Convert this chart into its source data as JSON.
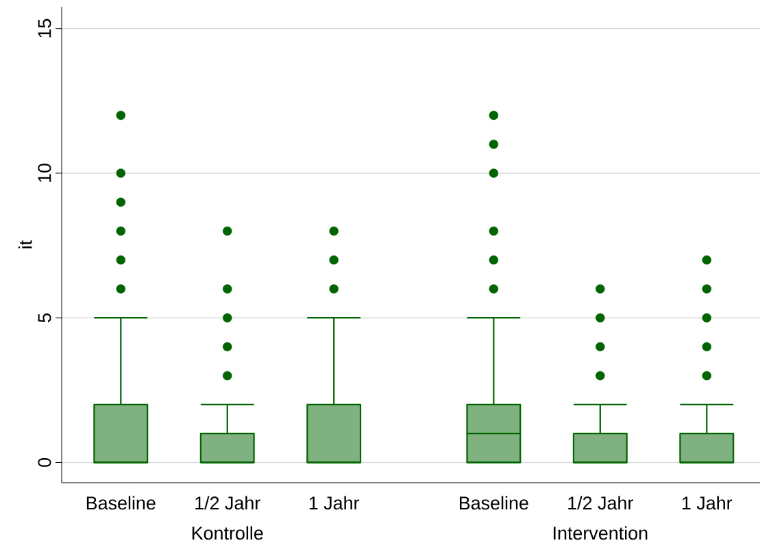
{
  "chart_data": {
    "type": "box",
    "ylabel": "it",
    "categories": [
      "Baseline",
      "1/2 Jahr",
      "1 Jahr",
      "Baseline",
      "1/2 Jahr",
      "1 Jahr"
    ],
    "annotations": [
      "Kontrolle",
      "Intervention"
    ],
    "series": [
      {
        "color": "#006400",
        "boxes": [
          {
            "low": 0,
            "q1": 0,
            "median": 0,
            "q3": 2,
            "high": 5,
            "outliers": [
              6,
              7,
              8,
              9,
              10,
              12
            ]
          },
          {
            "low": 0,
            "q1": 0,
            "median": 0,
            "q3": 1,
            "high": 2,
            "outliers": [
              3,
              4,
              5,
              6,
              8
            ]
          },
          {
            "low": 0,
            "q1": 0,
            "median": 0,
            "q3": 2,
            "high": 5,
            "outliers": [
              6,
              7,
              8
            ]
          },
          {
            "low": 0,
            "q1": 0,
            "median": 1,
            "q3": 2,
            "high": 5,
            "outliers": [
              6,
              7,
              8,
              10,
              11,
              12
            ]
          },
          {
            "low": 0,
            "q1": 0,
            "median": 0,
            "q3": 1,
            "high": 2,
            "outliers": [
              3,
              4,
              5,
              6
            ]
          },
          {
            "low": 0,
            "q1": 0,
            "median": 0,
            "q3": 1,
            "high": 2,
            "outliers": [
              3,
              4,
              5,
              6,
              7
            ]
          }
        ]
      }
    ],
    "ylim": [
      -0.7,
      15.75
    ],
    "yticks": [
      0,
      5,
      10,
      15
    ],
    "grid": "y"
  }
}
